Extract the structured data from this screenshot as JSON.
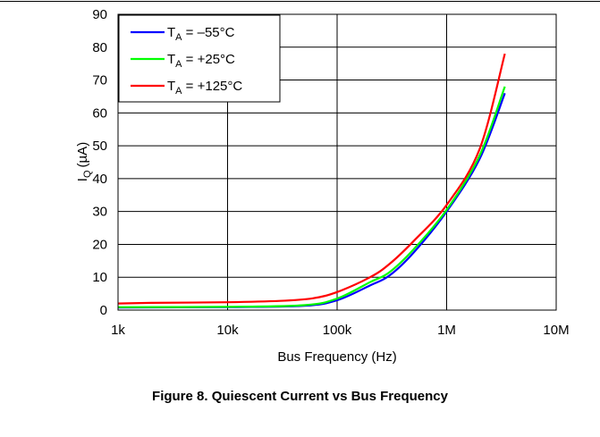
{
  "caption": "Figure 8. Quiescent Current vs Bus Frequency",
  "chart_data": {
    "type": "line",
    "title": "",
    "xlabel": "Bus Frequency (Hz)",
    "ylabel_main": "I",
    "ylabel_sub": "Q",
    "ylabel_unit": "(µA)",
    "x_scale": "log",
    "xlim": [
      1000,
      10000000
    ],
    "ylim": [
      0,
      90
    ],
    "x_ticks": [
      1000,
      10000,
      100000,
      1000000,
      10000000
    ],
    "x_tick_labels": [
      "1k",
      "10k",
      "100k",
      "1M",
      "10M"
    ],
    "y_ticks": [
      0,
      10,
      20,
      30,
      40,
      50,
      60,
      70,
      80,
      90
    ],
    "y_tick_labels": [
      "0",
      "10",
      "20",
      "30",
      "40",
      "50",
      "60",
      "70",
      "80",
      "90"
    ],
    "grid": true,
    "legend_position": "top-left",
    "series": [
      {
        "name_main": "T",
        "name_sub": "A",
        "name_rest": " = –55°C",
        "color": "#0000ff",
        "x": [
          1000,
          10000,
          50000,
          100000,
          200000,
          300000,
          500000,
          1000000,
          2000000,
          3400000
        ],
        "y": [
          0.8,
          0.9,
          1.3,
          3.0,
          7.5,
          10.5,
          17.5,
          30.0,
          46.0,
          66.0
        ]
      },
      {
        "name_main": "T",
        "name_sub": "A",
        "name_rest": " = +25°C",
        "color": "#00ff00",
        "x": [
          1000,
          10000,
          50000,
          100000,
          200000,
          300000,
          500000,
          1000000,
          2000000,
          3400000
        ],
        "y": [
          0.9,
          1.0,
          1.5,
          3.5,
          8.5,
          11.5,
          18.5,
          30.5,
          47.0,
          68.0
        ]
      },
      {
        "name_main": "T",
        "name_sub": "A",
        "name_rest": " = +125°C",
        "color": "#ff0000",
        "x": [
          1000,
          2000,
          10000,
          30000,
          60000,
          100000,
          200000,
          300000,
          500000,
          1000000,
          2000000,
          3400000
        ],
        "y": [
          2.0,
          2.2,
          2.4,
          2.8,
          3.6,
          5.5,
          10.0,
          14.0,
          21.0,
          32.0,
          49.0,
          78.0
        ]
      }
    ]
  }
}
